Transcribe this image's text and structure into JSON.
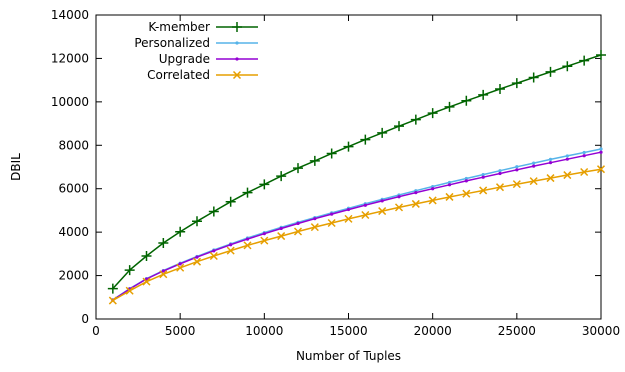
{
  "chart_data": {
    "type": "line",
    "title": "",
    "xlabel": "Number of Tuples",
    "ylabel": "DBIL",
    "xlim": [
      0,
      30000
    ],
    "ylim": [
      0,
      14000
    ],
    "xticks": [
      0,
      5000,
      10000,
      15000,
      20000,
      25000,
      30000
    ],
    "yticks": [
      0,
      2000,
      4000,
      6000,
      8000,
      10000,
      12000,
      14000
    ],
    "grid": false,
    "legend": "top-left",
    "x": [
      1000,
      2000,
      3000,
      4000,
      5000,
      6000,
      7000,
      8000,
      9000,
      10000,
      11000,
      12000,
      13000,
      14000,
      15000,
      16000,
      17000,
      18000,
      19000,
      20000,
      21000,
      22000,
      23000,
      24000,
      25000,
      26000,
      27000,
      28000,
      29000,
      30000
    ],
    "series": [
      {
        "name": "K-member",
        "color": "#006400",
        "marker": "plus",
        "values": [
          1400,
          2250,
          2900,
          3500,
          4020,
          4500,
          4950,
          5400,
          5820,
          6200,
          6580,
          6950,
          7280,
          7620,
          7940,
          8260,
          8570,
          8880,
          9180,
          9480,
          9770,
          10050,
          10320,
          10590,
          10860,
          11120,
          11380,
          11640,
          11900,
          12160
        ]
      },
      {
        "name": "Personalized",
        "color": "#56b4e9",
        "marker": "dot",
        "values": [
          880,
          1400,
          1860,
          2230,
          2570,
          2880,
          3180,
          3460,
          3730,
          3980,
          4220,
          4450,
          4670,
          4890,
          5100,
          5310,
          5510,
          5710,
          5910,
          6100,
          6290,
          6470,
          6650,
          6830,
          7010,
          7180,
          7350,
          7510,
          7670,
          7830
        ]
      },
      {
        "name": "Upgrade",
        "color": "#9400d3",
        "marker": "dot",
        "values": [
          870,
          1380,
          1840,
          2210,
          2540,
          2850,
          3140,
          3420,
          3680,
          3930,
          4170,
          4400,
          4620,
          4830,
          5040,
          5240,
          5440,
          5630,
          5820,
          6000,
          6180,
          6360,
          6530,
          6700,
          6870,
          7040,
          7200,
          7360,
          7520,
          7680
        ]
      },
      {
        "name": "Correlated",
        "color": "#e69f00",
        "marker": "x",
        "values": [
          850,
          1300,
          1720,
          2060,
          2360,
          2640,
          2900,
          3150,
          3390,
          3610,
          3820,
          4030,
          4230,
          4420,
          4610,
          4790,
          4970,
          5140,
          5300,
          5460,
          5620,
          5770,
          5920,
          6070,
          6210,
          6350,
          6490,
          6630,
          6770,
          6900
        ]
      }
    ]
  }
}
